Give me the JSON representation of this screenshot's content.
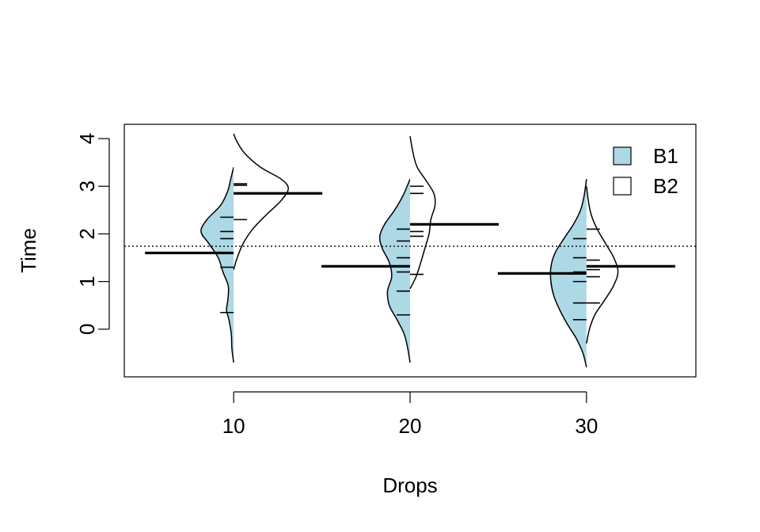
{
  "chart_data": {
    "type": "beanplot",
    "xlabel": "Drops",
    "ylabel": "Time",
    "categories": [
      "10",
      "20",
      "30"
    ],
    "x_values": [
      10,
      20,
      30
    ],
    "xlim": [
      3.8,
      36.2
    ],
    "ylim": [
      -1.0,
      4.3
    ],
    "yticks": [
      0,
      1,
      2,
      3,
      4
    ],
    "overall_mean": 1.74,
    "legend": {
      "position": "top-right",
      "entries": [
        {
          "label": "B1",
          "fill": "#add8e6"
        },
        {
          "label": "B2",
          "fill": "#ffffff"
        }
      ]
    },
    "series": [
      {
        "name": "B1",
        "side": "left",
        "fill": "#add8e6",
        "beans": [
          {
            "category": "10",
            "mean": 1.6,
            "ymin": -0.7,
            "ymax": 3.4,
            "observations": [
              0.35,
              1.3,
              1.6,
              1.9,
              2.05,
              2.35
            ],
            "density": [
              [
                -0.7,
                0.0
              ],
              [
                -0.4,
                0.03
              ],
              [
                -0.1,
                0.04
              ],
              [
                0.2,
                0.08
              ],
              [
                0.4,
                0.12
              ],
              [
                0.6,
                0.1
              ],
              [
                0.9,
                0.09
              ],
              [
                1.2,
                0.18
              ],
              [
                1.5,
                0.26
              ],
              [
                1.8,
                0.42
              ],
              [
                2.05,
                0.55
              ],
              [
                2.3,
                0.45
              ],
              [
                2.6,
                0.22
              ],
              [
                2.9,
                0.1
              ],
              [
                3.15,
                0.05
              ],
              [
                3.4,
                0.0
              ]
            ]
          },
          {
            "category": "20",
            "mean": 1.32,
            "ymin": -0.7,
            "ymax": 3.15,
            "observations": [
              0.3,
              0.8,
              1.2,
              1.5,
              1.85,
              2.1
            ],
            "density": [
              [
                -0.7,
                0.0
              ],
              [
                -0.4,
                0.04
              ],
              [
                -0.1,
                0.1
              ],
              [
                0.2,
                0.22
              ],
              [
                0.5,
                0.35
              ],
              [
                0.8,
                0.38
              ],
              [
                1.1,
                0.31
              ],
              [
                1.4,
                0.35
              ],
              [
                1.7,
                0.47
              ],
              [
                1.95,
                0.51
              ],
              [
                2.2,
                0.43
              ],
              [
                2.5,
                0.26
              ],
              [
                2.8,
                0.12
              ],
              [
                3.0,
                0.05
              ],
              [
                3.15,
                0.0
              ]
            ]
          },
          {
            "category": "30",
            "mean": 1.17,
            "ymin": -0.8,
            "ymax": 3.15,
            "observations": [
              0.2,
              0.55,
              1.0,
              1.2,
              1.5,
              1.9
            ],
            "density": [
              [
                -0.8,
                0.0
              ],
              [
                -0.5,
                0.06
              ],
              [
                -0.2,
                0.17
              ],
              [
                0.1,
                0.32
              ],
              [
                0.4,
                0.45
              ],
              [
                0.7,
                0.55
              ],
              [
                1.0,
                0.6
              ],
              [
                1.3,
                0.6
              ],
              [
                1.6,
                0.53
              ],
              [
                1.9,
                0.38
              ],
              [
                2.2,
                0.22
              ],
              [
                2.5,
                0.1
              ],
              [
                2.8,
                0.04
              ],
              [
                3.15,
                0.0
              ]
            ]
          }
        ]
      },
      {
        "name": "B2",
        "side": "right",
        "fill": "#ffffff",
        "beans": [
          {
            "category": "10",
            "mean": 2.85,
            "ymin": 1.25,
            "ymax": 4.1,
            "observations": [
              2.3,
              2.85,
              3.02,
              3.05
            ],
            "density": [
              [
                1.25,
                0.0
              ],
              [
                1.5,
                0.06
              ],
              [
                1.8,
                0.16
              ],
              [
                2.1,
                0.32
              ],
              [
                2.4,
                0.55
              ],
              [
                2.7,
                0.8
              ],
              [
                2.95,
                0.92
              ],
              [
                3.15,
                0.8
              ],
              [
                3.4,
                0.45
              ],
              [
                3.7,
                0.18
              ],
              [
                3.95,
                0.05
              ],
              [
                4.1,
                0.0
              ]
            ]
          },
          {
            "category": "20",
            "mean": 2.2,
            "ymin": 0.85,
            "ymax": 4.05,
            "observations": [
              1.15,
              1.95,
              2.05,
              2.85,
              3.0
            ],
            "density": [
              [
                0.85,
                0.0
              ],
              [
                1.1,
                0.1
              ],
              [
                1.4,
                0.18
              ],
              [
                1.7,
                0.25
              ],
              [
                2.0,
                0.32
              ],
              [
                2.3,
                0.35
              ],
              [
                2.6,
                0.42
              ],
              [
                2.85,
                0.4
              ],
              [
                3.1,
                0.28
              ],
              [
                3.4,
                0.12
              ],
              [
                3.7,
                0.05
              ],
              [
                4.05,
                0.0
              ]
            ]
          },
          {
            "category": "30",
            "mean": 1.32,
            "ymin": -0.3,
            "ymax": 3.0,
            "observations": [
              0.55,
              1.1,
              1.25,
              1.45,
              2.1
            ],
            "density": [
              [
                -0.3,
                0.0
              ],
              [
                0.0,
                0.05
              ],
              [
                0.3,
                0.14
              ],
              [
                0.6,
                0.3
              ],
              [
                0.9,
                0.45
              ],
              [
                1.2,
                0.53
              ],
              [
                1.5,
                0.46
              ],
              [
                1.8,
                0.32
              ],
              [
                2.1,
                0.18
              ],
              [
                2.4,
                0.08
              ],
              [
                2.7,
                0.03
              ],
              [
                3.0,
                0.0
              ]
            ]
          }
        ]
      }
    ]
  }
}
